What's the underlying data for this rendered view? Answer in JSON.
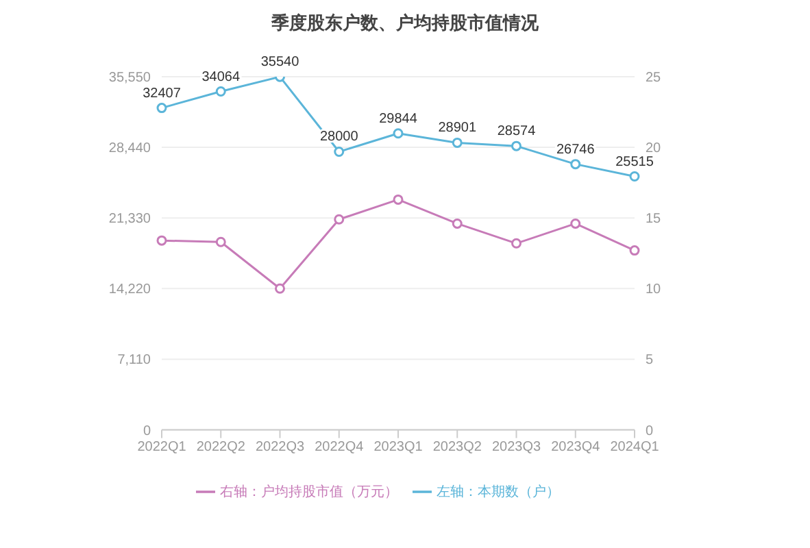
{
  "chart_data": {
    "type": "line",
    "title": "季度股东户数、户均持股市值情况",
    "categories": [
      "2022Q1",
      "2022Q2",
      "2022Q3",
      "2022Q4",
      "2023Q1",
      "2023Q2",
      "2023Q3",
      "2023Q4",
      "2024Q1"
    ],
    "series": [
      {
        "name": "左轴：本期数（户）",
        "color": "#5bb5d9",
        "values": [
          32407,
          34064,
          35540,
          28000,
          29844,
          28901,
          28574,
          26746,
          25515
        ],
        "value_labels": [
          "32407",
          "34064",
          "35540",
          "28000",
          "29844",
          "28901",
          "28574",
          "26746",
          "25515"
        ]
      },
      {
        "name": "右轴：户均持股市值（万元）",
        "color": "#c77bb8",
        "axis": "y2",
        "values": [
          13.4,
          13.3,
          10.0,
          14.9,
          16.3,
          14.6,
          13.2,
          14.6,
          12.7
        ]
      }
    ],
    "ylim": [
      0,
      35550
    ],
    "yticks": [
      0,
      {
        "value": 7110,
        "label": "7,110"
      },
      {
        "value": 14220,
        "label": "14,220"
      },
      {
        "value": 21330,
        "label": "21,330"
      },
      {
        "value": 28440,
        "label": "28,440"
      },
      {
        "value": 35550,
        "label": "35,550"
      }
    ],
    "y2lim": [
      0,
      25
    ],
    "y2ticks": [
      0,
      5,
      10,
      15,
      20,
      25
    ],
    "grid": "y",
    "legend": "bottom",
    "marker": "circle",
    "line_style": "solid"
  }
}
